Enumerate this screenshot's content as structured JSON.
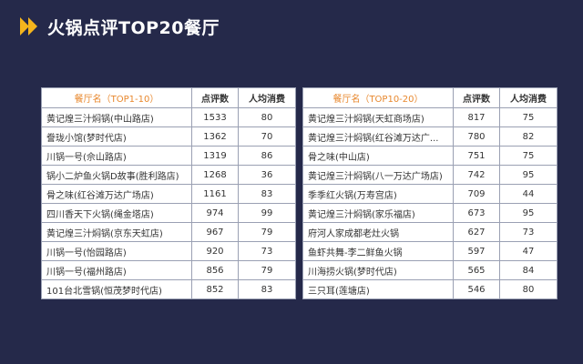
{
  "header": {
    "title": "火锅点评TOP20餐厅"
  },
  "table1": {
    "headers": [
      "餐厅名（TOP1-10）",
      "点评数",
      "人均消费"
    ],
    "rows": [
      [
        "黄记煌三汁焖锅(中山路店)",
        "1533",
        "80"
      ],
      [
        "誊珑小馆(梦时代店)",
        "1362",
        "70"
      ],
      [
        "川锅一号(佘山路店)",
        "1319",
        "86"
      ],
      [
        "锅小二炉鱼火锅D故事(胜利路店)",
        "1268",
        "36"
      ],
      [
        "骨之味(红谷滩万达广场店)",
        "1161",
        "83"
      ],
      [
        "四川香天下火锅(绳金塔店)",
        "974",
        "99"
      ],
      [
        "黄记煌三汁焖锅(京东天虹店)",
        "967",
        "79"
      ],
      [
        "川锅一号(怡园路店)",
        "920",
        "73"
      ],
      [
        "川锅一号(福州路店)",
        "856",
        "79"
      ],
      [
        "101台北雪锅(恒茂梦时代店)",
        "852",
        "83"
      ]
    ]
  },
  "table2": {
    "headers": [
      "餐厅名（TOP10-20）",
      "点评数",
      "人均消费"
    ],
    "rows": [
      [
        "黄记煌三汁焖锅(天虹商场店)",
        "817",
        "75"
      ],
      [
        "黄记煌三汁焖锅(红谷滩万达广...",
        "780",
        "82"
      ],
      [
        "骨之味(中山店)",
        "751",
        "75"
      ],
      [
        "黄记煌三汁焖锅(八一万达广场店)",
        "742",
        "95"
      ],
      [
        "季季红火锅(万寿宫店)",
        "709",
        "44"
      ],
      [
        "黄记煌三汁焖锅(家乐福店)",
        "673",
        "95"
      ],
      [
        "府河人家成都老灶火锅",
        "627",
        "73"
      ],
      [
        "鱼虾共舞-李二鲜鱼火锅",
        "597",
        "47"
      ],
      [
        "川海捞火锅(梦时代店)",
        "565",
        "84"
      ],
      [
        "三只耳(莲塘店)",
        "546",
        "80"
      ]
    ]
  },
  "colors": {
    "background": "#25294a",
    "accent": "#f5b51d",
    "header_name": "#e8882e"
  }
}
